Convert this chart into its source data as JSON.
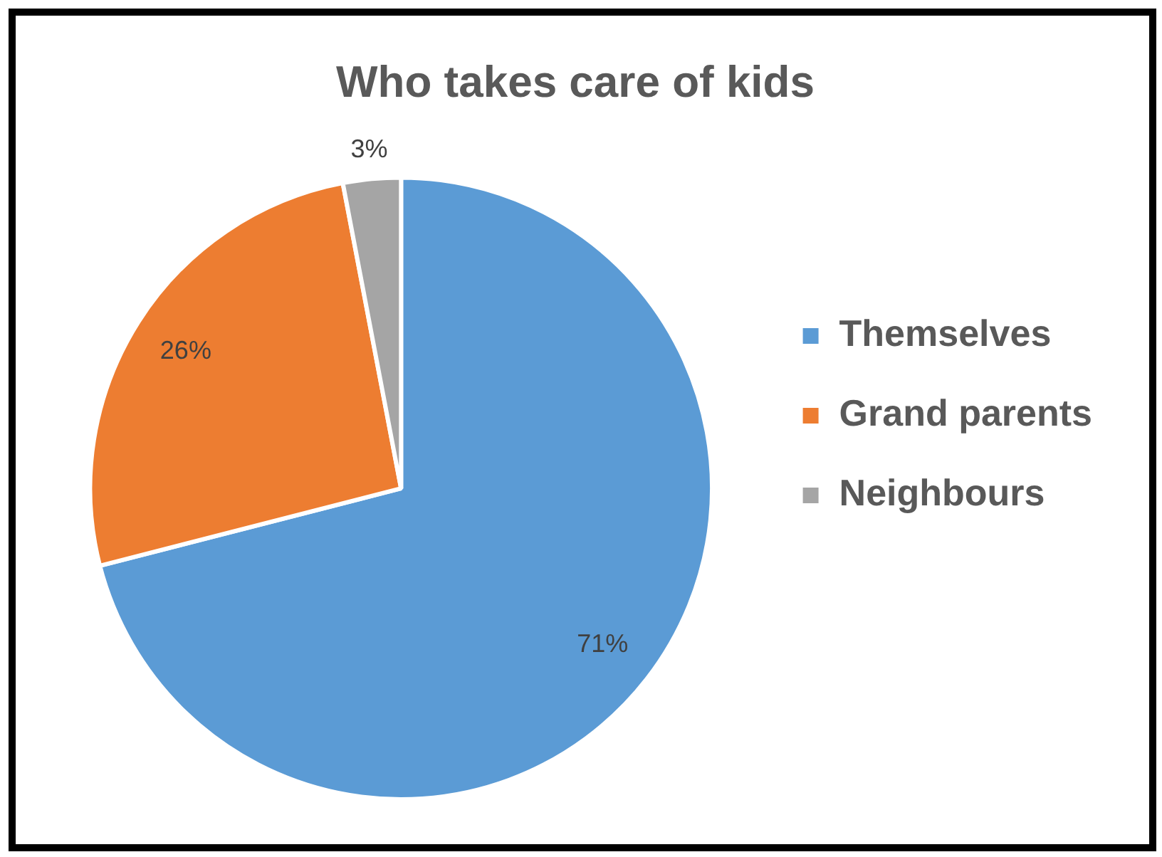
{
  "chart_data": {
    "type": "pie",
    "title": "Who takes care of kids",
    "categories": [
      "Themselves",
      "Grand parents",
      "Neighbours"
    ],
    "values": [
      71,
      26,
      3
    ],
    "colors": [
      "#5b9bd5",
      "#ed7d31",
      "#a5a5a5"
    ],
    "value_labels": [
      "71%",
      "26%",
      "3%"
    ],
    "legend": "right"
  }
}
